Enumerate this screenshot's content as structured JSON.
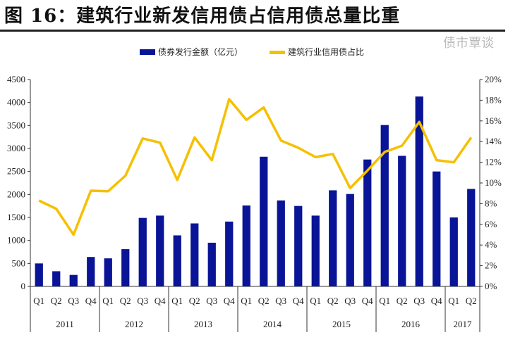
{
  "title": "图 16：建筑行业新发信用债占信用债总量比重",
  "watermark": "债市覃谈",
  "chart_data": {
    "type": "bar+line",
    "title": "图 16：建筑行业新发信用债占信用债总量比重",
    "quarters": [
      "Q1",
      "Q2",
      "Q3",
      "Q4",
      "Q1",
      "Q2",
      "Q3",
      "Q4",
      "Q1",
      "Q2",
      "Q3",
      "Q4",
      "Q1",
      "Q2",
      "Q3",
      "Q4",
      "Q1",
      "Q2",
      "Q3",
      "Q4",
      "Q1",
      "Q2",
      "Q3",
      "Q4",
      "Q1",
      "Q2"
    ],
    "years": [
      {
        "label": "2011",
        "n": 4
      },
      {
        "label": "2012",
        "n": 4
      },
      {
        "label": "2013",
        "n": 4
      },
      {
        "label": "2014",
        "n": 4
      },
      {
        "label": "2015",
        "n": 4
      },
      {
        "label": "2016",
        "n": 4
      },
      {
        "label": "2017",
        "n": 2
      }
    ],
    "series": [
      {
        "name": "债券发行金额（亿元）",
        "type": "bar",
        "axis": "left",
        "color": "#0a1496",
        "values": [
          500,
          330,
          250,
          640,
          610,
          810,
          1490,
          1540,
          1110,
          1370,
          950,
          1410,
          1760,
          2820,
          1870,
          1750,
          1540,
          2090,
          2010,
          2760,
          3510,
          2840,
          4130,
          2500,
          1500,
          2120
        ]
      },
      {
        "name": "建筑行业信用债占比",
        "type": "line",
        "axis": "right",
        "color": "#f5c000",
        "values": [
          8.3,
          7.5,
          5.0,
          9.25,
          9.2,
          10.7,
          14.3,
          13.9,
          10.3,
          14.4,
          12.2,
          18.1,
          16.1,
          17.3,
          14.1,
          13.4,
          12.5,
          12.8,
          9.5,
          11.2,
          13.0,
          13.6,
          15.9,
          12.2,
          12.0,
          14.4
        ]
      }
    ],
    "y_left": {
      "range": [
        0,
        4500
      ],
      "ticks": [
        "0",
        "500",
        "1000",
        "1500",
        "2000",
        "2500",
        "3000",
        "3500",
        "4000",
        "4500"
      ]
    },
    "y_right": {
      "range": [
        0,
        20
      ],
      "ticks": [
        "0%",
        "2%",
        "4%",
        "6%",
        "8%",
        "10%",
        "12%",
        "14%",
        "16%",
        "18%",
        "20%"
      ]
    },
    "legend_position": "top",
    "grid": false
  }
}
